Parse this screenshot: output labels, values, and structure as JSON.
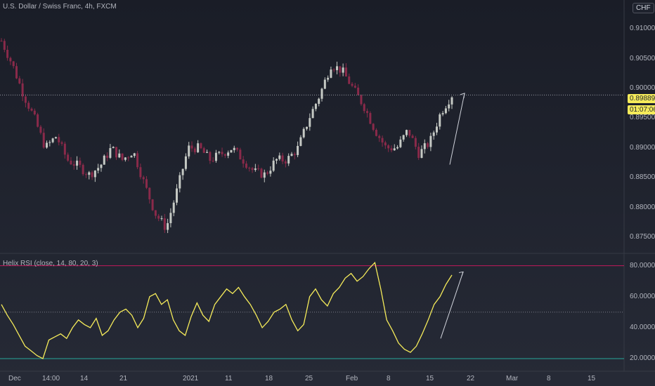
{
  "price_pane": {
    "title": "U.S. Dollar / Swiss Franc, 4h, FXCM",
    "currency_button": "CHF",
    "current_price": "0.89889",
    "countdown": "01:07:06",
    "y_ticks": [
      "0.91000",
      "0.90500",
      "0.90000",
      "0.89500",
      "0.89000",
      "0.88500",
      "0.88000",
      "0.87500"
    ]
  },
  "rsi_pane": {
    "title": "Helix RSI (close, 14, 80, 20, 3)",
    "y_ticks": [
      "80.00000",
      "60.00000",
      "40.00000",
      "20.00000"
    ]
  },
  "x_axis": {
    "labels": [
      "Dec",
      "14:00",
      "14",
      "21",
      "2021",
      "11",
      "18",
      "25",
      "Feb",
      "8",
      "15",
      "22",
      "Mar",
      "8",
      "15"
    ]
  },
  "colors": {
    "up_candle": "#c5c9c4",
    "down_candle": "#8a2a4a",
    "rsi_line": "#f5eb5a",
    "overbought_line": "#c2185b",
    "oversold_line": "#26a69a",
    "mid_line": "#787b86",
    "badge": "#f5eb5a"
  },
  "chart_data": [
    {
      "type": "candlestick",
      "title": "U.S. Dollar / Swiss Franc, 4h, FXCM",
      "ylim": [
        0.873,
        0.9125
      ],
      "close_path": [
        [
          "Dec",
          0.908
        ],
        [
          "Dec",
          0.904
        ],
        [
          "Dec",
          0.899
        ],
        [
          "Dec",
          0.895
        ],
        [
          "14:00",
          0.89
        ],
        [
          "14:00",
          0.892
        ],
        [
          "14",
          0.888
        ],
        [
          "14",
          0.887
        ],
        [
          "14",
          0.8855
        ],
        [
          "21",
          0.887
        ],
        [
          "21",
          0.89
        ],
        [
          "21",
          0.888
        ],
        [
          "21",
          0.8895
        ],
        [
          "2021",
          0.884
        ],
        [
          "2021",
          0.879
        ],
        [
          "2021",
          0.8765
        ],
        [
          "2021",
          0.883
        ],
        [
          "11",
          0.89
        ],
        [
          "11",
          0.89
        ],
        [
          "11",
          0.888
        ],
        [
          "18",
          0.889
        ],
        [
          "18",
          0.89
        ],
        [
          "18",
          0.888
        ],
        [
          "25",
          0.886
        ],
        [
          "25",
          0.8855
        ],
        [
          "25",
          0.888
        ],
        [
          "25",
          0.888
        ],
        [
          "Feb",
          0.89
        ],
        [
          "Feb",
          0.895
        ],
        [
          "Feb",
          0.899
        ],
        [
          "Feb",
          0.904
        ],
        [
          "Feb",
          0.903
        ],
        [
          "8",
          0.9
        ],
        [
          "8",
          0.897
        ],
        [
          "8",
          0.893
        ],
        [
          "8",
          0.89
        ],
        [
          "15",
          0.89
        ],
        [
          "15",
          0.893
        ],
        [
          "15",
          0.889
        ],
        [
          "15",
          0.891
        ],
        [
          "15",
          0.896
        ],
        [
          "15",
          0.8989
        ]
      ]
    },
    {
      "type": "line",
      "title": "Helix RSI (close, 14, 80, 20, 3)",
      "ylim": [
        15,
        83
      ],
      "levels": [
        80,
        50,
        20
      ],
      "values": [
        55,
        48,
        42,
        35,
        28,
        25,
        22,
        20,
        32,
        34,
        36,
        33,
        40,
        45,
        42,
        40,
        46,
        35,
        38,
        45,
        50,
        52,
        48,
        40,
        46,
        60,
        62,
        55,
        58,
        45,
        38,
        35,
        47,
        56,
        48,
        44,
        55,
        60,
        65,
        62,
        66,
        60,
        55,
        48,
        40,
        44,
        50,
        52,
        55,
        45,
        38,
        42,
        60,
        65,
        58,
        54,
        62,
        66,
        72,
        75,
        70,
        73,
        78,
        82,
        65,
        45,
        38,
        30,
        26,
        24,
        28,
        36,
        45,
        55,
        60,
        68,
        74
      ]
    }
  ]
}
